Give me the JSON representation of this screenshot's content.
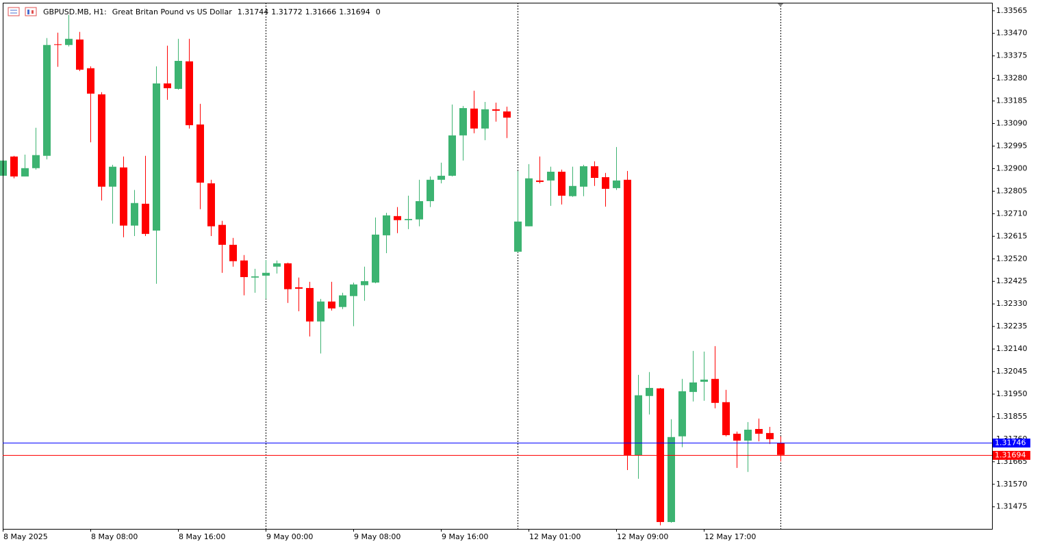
{
  "chart_data": {
    "type": "candlestick",
    "title": "GBPUSD.MB, H1:",
    "subtitle": "Great Britan Pound vs US Dollar",
    "volume": 0,
    "up_color": "#3cb371",
    "down_color": "#ff0000",
    "categories": [
      "8 May 2025",
      null,
      null,
      null,
      null,
      null,
      null,
      null,
      "8 May 08:00",
      null,
      null,
      null,
      null,
      null,
      null,
      null,
      "8 May 16:00",
      null,
      null,
      null,
      null,
      null,
      null,
      null,
      "9 May 00:00",
      null,
      null,
      null,
      null,
      null,
      null,
      null,
      "9 May 08:00",
      null,
      null,
      null,
      null,
      null,
      null,
      null,
      "9 May 16:00",
      null,
      null,
      null,
      null,
      null,
      null,
      null,
      "12 May 01:00",
      null,
      null,
      null,
      null,
      null,
      null,
      null,
      "12 May 09:00",
      null,
      null,
      null,
      null,
      null,
      null,
      null,
      "12 May 17:00",
      null,
      null,
      null,
      null,
      null,
      null,
      null
    ],
    "open": [
      1.3287,
      1.32951,
      1.32867,
      1.32902,
      1.32954,
      1.33424,
      1.33421,
      1.33444,
      1.33323,
      1.33213,
      1.32824,
      1.32905,
      1.3266,
      1.32752,
      1.32639,
      1.33259,
      1.33236,
      1.33352,
      1.33086,
      1.32838,
      1.32663,
      1.32579,
      1.32513,
      1.32441,
      1.32449,
      1.32487,
      1.32501,
      1.324,
      1.32397,
      1.32256,
      1.3234,
      1.32317,
      1.32363,
      1.32409,
      1.3242,
      1.32619,
      1.327,
      1.32683,
      1.32686,
      1.32763,
      1.32853,
      1.3287,
      1.3304,
      1.33153,
      1.33069,
      1.3315,
      1.33141,
      1.3255,
      1.32657,
      1.3285,
      1.3285,
      1.32887,
      1.32784,
      1.32824,
      1.3291,
      1.32864,
      1.32818,
      1.32853,
      1.31691,
      1.31942,
      1.31974,
      1.31411,
      1.31772,
      1.31959,
      1.32002,
      1.32014,
      1.31916,
      1.31783,
      1.31754,
      1.31803,
      1.31786,
      1.31744
    ],
    "high": [
      1.32939,
      1.32954,
      1.32959,
      1.33072,
      1.3345,
      1.33473,
      1.33548,
      1.33476,
      1.33331,
      1.33222,
      1.32916,
      1.32951,
      1.3281,
      1.32954,
      1.33331,
      1.33418,
      1.33447,
      1.33447,
      1.33173,
      1.32853,
      1.3268,
      1.32608,
      1.32536,
      1.32478,
      1.32515,
      1.32513,
      1.32504,
      1.32441,
      1.32423,
      1.32351,
      1.32423,
      1.32377,
      1.3242,
      1.32487,
      1.32694,
      1.32714,
      1.32738,
      1.32786,
      1.32853,
      1.32867,
      1.32925,
      1.3317,
      1.33164,
      1.33228,
      1.33181,
      1.33178,
      1.33161,
      1.3289,
      1.32919,
      1.32951,
      1.32908,
      1.32896,
      1.32908,
      1.32916,
      1.32931,
      1.32882,
      1.32991,
      1.3289,
      1.32031,
      1.32043,
      1.31976,
      1.31844,
      1.32014,
      1.32132,
      1.32129,
      1.32152,
      1.31968,
      1.31792,
      1.31832,
      1.31847,
      1.31812,
      1.31772
    ],
    "low": [
      1.32867,
      1.32859,
      1.32867,
      1.32896,
      1.32939,
      1.33329,
      1.33415,
      1.33311,
      1.33011,
      1.32766,
      1.32668,
      1.32611,
      1.32616,
      1.32616,
      1.32415,
      1.3319,
      1.33233,
      1.33069,
      1.32729,
      1.32616,
      1.32461,
      1.32487,
      1.32366,
      1.32377,
      1.32351,
      1.32458,
      1.32334,
      1.32299,
      1.32193,
      1.32121,
      1.32302,
      1.32308,
      1.32236,
      1.32343,
      1.32417,
      1.32544,
      1.32628,
      1.32645,
      1.32657,
      1.32738,
      1.32838,
      1.32867,
      1.32934,
      1.33049,
      1.3302,
      1.33098,
      1.33029,
      1.32547,
      1.32657,
      1.32838,
      1.32743,
      1.32749,
      1.32781,
      1.32784,
      1.32827,
      1.3274,
      1.3281,
      1.3163,
      1.31593,
      1.31864,
      1.31397,
      1.31408,
      1.31726,
      1.31919,
      1.31922,
      1.3189,
      1.31772,
      1.31639,
      1.31622,
      1.31751,
      1.3174,
      1.31666
    ],
    "close": [
      1.32934,
      1.32867,
      1.32902,
      1.32957,
      1.33421,
      1.33421,
      1.33447,
      1.33317,
      1.33216,
      1.32824,
      1.32908,
      1.3266,
      1.32755,
      1.32625,
      1.33259,
      1.33239,
      1.33354,
      1.33083,
      1.32841,
      1.32657,
      1.32579,
      1.3251,
      1.32443,
      1.32446,
      1.32461,
      1.32501,
      1.32392,
      1.32394,
      1.32256,
      1.3234,
      1.32311,
      1.32366,
      1.32412,
      1.32426,
      1.32622,
      1.32703,
      1.32683,
      1.32688,
      1.32763,
      1.32853,
      1.3287,
      1.3304,
      1.33155,
      1.33069,
      1.3315,
      1.33144,
      1.33115,
      1.32677,
      1.32859,
      1.32844,
      1.32887,
      1.32786,
      1.32827,
      1.3291,
      1.32861,
      1.32815,
      1.3285,
      1.31691,
      1.31945,
      1.31976,
      1.31411,
      1.31769,
      1.31962,
      1.31999,
      1.32011,
      1.31913,
      1.31777,
      1.31754,
      1.318,
      1.31783,
      1.3176,
      1.31694
    ],
    "ylim": [
      1.31382,
      1.33599
    ],
    "yticks": [
      1.33565,
      {
        "value": 1.3347,
        "label": "1.33470"
      },
      1.33375,
      {
        "value": 1.3328,
        "label": "1.33280"
      },
      1.33185,
      {
        "value": 1.3309,
        "label": "1.33090"
      },
      1.32995,
      {
        "value": 1.329,
        "label": "1.32900"
      },
      1.32805,
      {
        "value": 1.3271,
        "label": "1.32710"
      },
      1.32615,
      {
        "value": 1.3252,
        "label": "1.32520"
      },
      1.32425,
      {
        "value": 1.3233,
        "label": "1.32330"
      },
      1.32235,
      {
        "value": 1.3214,
        "label": "1.32140"
      },
      1.32045,
      {
        "value": 1.3195,
        "label": "1.31950"
      },
      1.31855,
      {
        "value": 1.3176,
        "label": "1.31760"
      },
      1.31665,
      {
        "value": 1.3157,
        "label": "1.31570"
      },
      1.31475
    ],
    "price_lines": [
      {
        "value": 1.31746,
        "color": "#0000ff"
      },
      {
        "value": 1.31694,
        "color": "#ff0000"
      }
    ]
  }
}
